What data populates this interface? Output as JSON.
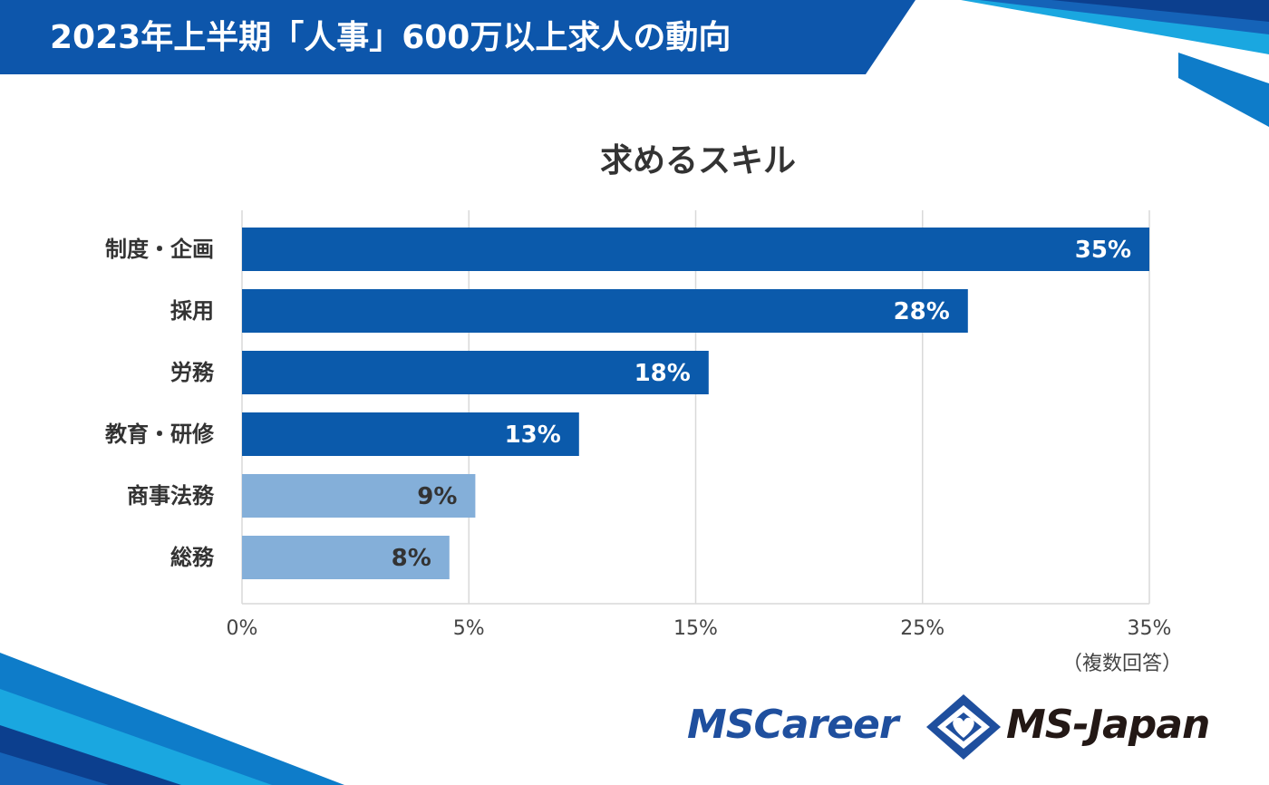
{
  "header": {
    "title": "2023年上半期「人事」600万以上求人の動向"
  },
  "chart_data": {
    "type": "bar",
    "orientation": "horizontal",
    "title": "求めるスキル",
    "categories": [
      "制度・企画",
      "採用",
      "労務",
      "教育・研修",
      "商事法務",
      "総務"
    ],
    "values": [
      35,
      28,
      18,
      13,
      9,
      8
    ],
    "value_labels": [
      "35%",
      "28%",
      "18%",
      "13%",
      "9%",
      "8%"
    ],
    "bar_colors": [
      "#0b5aab",
      "#0b5aab",
      "#0b5aab",
      "#0b5aab",
      "#84afd9",
      "#84afd9"
    ],
    "label_colors": [
      "#ffffff",
      "#ffffff",
      "#ffffff",
      "#ffffff",
      "#333333",
      "#333333"
    ],
    "x_ticks": [
      "0%",
      "5%",
      "15%",
      "25%",
      "35%"
    ],
    "xlim": [
      0,
      35
    ],
    "grid": true,
    "legend": "none",
    "note": "（複数回答）"
  },
  "footer": {
    "logo_mscareer": "MSCareer",
    "logo_msjapan": "MS-Japan"
  },
  "colors": {
    "brand_blue": "#0b5aab",
    "light_blue": "#84afd9",
    "header_blue": "#0d56ab"
  }
}
